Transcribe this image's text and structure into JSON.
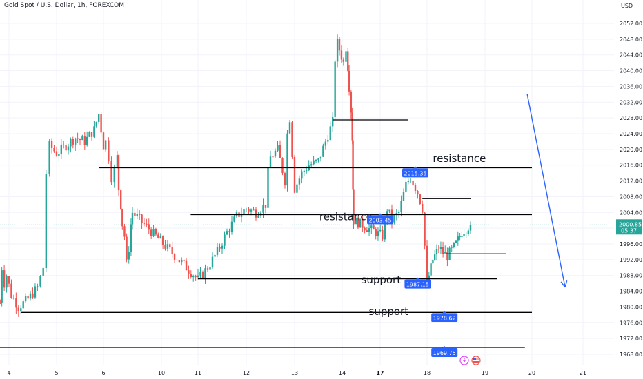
{
  "header": {
    "title": "Gold Spot / U.S. Dollar, 1h, FOREXCOM",
    "currency": "USD"
  },
  "colors": {
    "up": "#26a69a",
    "down": "#ef5350",
    "line": "#000000",
    "arrow": "#2962ff",
    "badge": "#2962ff",
    "current_price_bg": "#26a69a",
    "grid": "#f0f3fa",
    "axis_text": "#131722"
  },
  "chart_data": {
    "type": "candlestick",
    "y_axis": {
      "range": [
        1966,
        2056
      ],
      "ticks": [
        1968,
        1972,
        1976,
        1980,
        1984,
        1988,
        1992,
        1996,
        2000,
        2004,
        2008,
        2012,
        2016,
        2020,
        2024,
        2028,
        2032,
        2036,
        2040,
        2044,
        2048,
        2052
      ]
    },
    "x_axis": {
      "ticks": [
        {
          "label": "4",
          "day": 4,
          "bold": false
        },
        {
          "label": "5",
          "day": 5,
          "bold": false
        },
        {
          "label": "6",
          "day": 6,
          "bold": false
        },
        {
          "label": "10",
          "day": 10,
          "bold": false
        },
        {
          "label": "11",
          "day": 11,
          "bold": false
        },
        {
          "label": "12",
          "day": 12,
          "bold": false
        },
        {
          "label": "13",
          "day": 13,
          "bold": false
        },
        {
          "label": "14",
          "day": 14,
          "bold": false
        },
        {
          "label": "17",
          "day": 17,
          "bold": true
        },
        {
          "label": "18",
          "day": 18,
          "bold": false
        },
        {
          "label": "19",
          "day": 19,
          "bold": false
        },
        {
          "label": "20",
          "day": 20,
          "bold": false
        },
        {
          "label": "21",
          "day": 21,
          "bold": false
        }
      ]
    },
    "price_path": [
      {
        "day": 3.45,
        "price": 1981
      },
      {
        "day": 3.55,
        "price": 1990
      },
      {
        "day": 3.7,
        "price": 1986
      },
      {
        "day": 3.85,
        "price": 1988
      },
      {
        "day": 4.05,
        "price": 1983
      },
      {
        "day": 4.2,
        "price": 1980
      },
      {
        "day": 4.4,
        "price": 1982
      },
      {
        "day": 4.6,
        "price": 1985
      },
      {
        "day": 4.72,
        "price": 1990
      },
      {
        "day": 4.78,
        "price": 2014
      },
      {
        "day": 4.85,
        "price": 2021
      },
      {
        "day": 5.0,
        "price": 2019
      },
      {
        "day": 5.2,
        "price": 2021
      },
      {
        "day": 5.4,
        "price": 2023
      },
      {
        "day": 5.6,
        "price": 2022
      },
      {
        "day": 5.8,
        "price": 2025
      },
      {
        "day": 5.9,
        "price": 2029
      },
      {
        "day": 6.0,
        "price": 2021
      },
      {
        "day": 6.15,
        "price": 2022
      },
      {
        "day": 6.35,
        "price": 2018
      },
      {
        "day": 6.55,
        "price": 2013
      },
      {
        "day": 6.75,
        "price": 2015
      },
      {
        "day": 6.95,
        "price": 2018
      },
      {
        "day": 7.05,
        "price": 2010
      },
      {
        "day": 7.2,
        "price": 2006
      },
      {
        "day": 7.3,
        "price": 2001
      },
      {
        "day": 7.45,
        "price": 1998
      },
      {
        "day": 7.6,
        "price": 1991
      },
      {
        "day": 7.75,
        "price": 1995
      },
      {
        "day": 7.9,
        "price": 2001
      },
      {
        "day": 8.0,
        "price": 2004
      },
      {
        "day": 11.0,
        "price": 1987
      },
      {
        "day": 11.2,
        "price": 1990
      },
      {
        "day": 11.4,
        "price": 1994
      },
      {
        "day": 11.6,
        "price": 1999
      },
      {
        "day": 11.8,
        "price": 2003
      },
      {
        "day": 12.0,
        "price": 2005
      },
      {
        "day": 12.2,
        "price": 2004
      },
      {
        "day": 12.4,
        "price": 2006
      },
      {
        "day": 12.45,
        "price": 2014
      },
      {
        "day": 12.5,
        "price": 2018
      },
      {
        "day": 12.65,
        "price": 2020
      },
      {
        "day": 12.8,
        "price": 2012
      },
      {
        "day": 12.85,
        "price": 2024
      },
      {
        "day": 12.9,
        "price": 2028
      },
      {
        "day": 13.0,
        "price": 2010
      },
      {
        "day": 13.15,
        "price": 2014
      },
      {
        "day": 13.3,
        "price": 2016
      },
      {
        "day": 13.5,
        "price": 2017
      },
      {
        "day": 13.65,
        "price": 2022
      },
      {
        "day": 13.8,
        "price": 2027
      },
      {
        "day": 13.85,
        "price": 2043
      },
      {
        "day": 13.9,
        "price": 2047
      },
      {
        "day": 14.1,
        "price": 2042
      },
      {
        "day": 14.3,
        "price": 2046
      },
      {
        "day": 14.45,
        "price": 2041
      },
      {
        "day": 14.55,
        "price": 2036
      },
      {
        "day": 14.7,
        "price": 2030
      },
      {
        "day": 14.8,
        "price": 2023
      },
      {
        "day": 14.85,
        "price": 2010
      },
      {
        "day": 14.9,
        "price": 2002
      },
      {
        "day": 17.05,
        "price": 1998
      },
      {
        "day": 17.15,
        "price": 2005
      },
      {
        "day": 17.25,
        "price": 2002
      },
      {
        "day": 17.4,
        "price": 2004
      },
      {
        "day": 17.55,
        "price": 2011
      },
      {
        "day": 17.65,
        "price": 2013
      },
      {
        "day": 17.8,
        "price": 2009
      },
      {
        "day": 17.9,
        "price": 2005
      },
      {
        "day": 18.0,
        "price": 1986
      },
      {
        "day": 18.1,
        "price": 1992
      },
      {
        "day": 18.2,
        "price": 1995
      },
      {
        "day": 18.35,
        "price": 1993
      },
      {
        "day": 18.5,
        "price": 1996
      },
      {
        "day": 18.6,
        "price": 1999
      },
      {
        "day": 18.75,
        "price": 2000.85
      }
    ],
    "levels": [
      {
        "price": 2015.35,
        "from_day": 5.9,
        "to_day": 20.0
      },
      {
        "price": 2003.45,
        "from_day": 10.8,
        "to_day": 20.0
      },
      {
        "price": 1987.15,
        "from_day": 11.0,
        "to_day": 19.25
      },
      {
        "price": 1978.62,
        "from_day": 4.25,
        "to_day": 20.0
      },
      {
        "price": 1969.75,
        "from_day": 3.0,
        "to_day": 19.85
      },
      {
        "price": 2027.5,
        "from_day": 13.8,
        "to_day": 17.6
      },
      {
        "price": 2007.5,
        "from_day": 17.9,
        "to_day": 18.75
      },
      {
        "price": 1993.5,
        "from_day": 18.25,
        "to_day": 19.45
      }
    ],
    "annotations": [
      {
        "text": "resistance",
        "price": 2016.8,
        "day": 18.1
      },
      {
        "text": "resistance",
        "price": 2002.0,
        "day": 13.52
      },
      {
        "text": "support",
        "price": 1986.0,
        "day": 15.5
      },
      {
        "text": "support",
        "price": 1978.0,
        "day": 16.1
      }
    ],
    "price_badges": [
      {
        "value": "2015.35",
        "day": 17.75
      },
      {
        "value": "2003.45",
        "day": 17.0
      },
      {
        "value": "1987.15",
        "day": 17.8
      },
      {
        "value": "1978.62",
        "day": 18.3
      },
      {
        "value": "1969.75",
        "day": 18.3
      }
    ],
    "current_price": {
      "value": "2000.85",
      "countdown": "05:37",
      "price": 2000.85
    },
    "trend_arrow": {
      "from": {
        "day": 19.9,
        "price": 2034
      },
      "to": {
        "day": 20.65,
        "price": 1985
      }
    }
  }
}
